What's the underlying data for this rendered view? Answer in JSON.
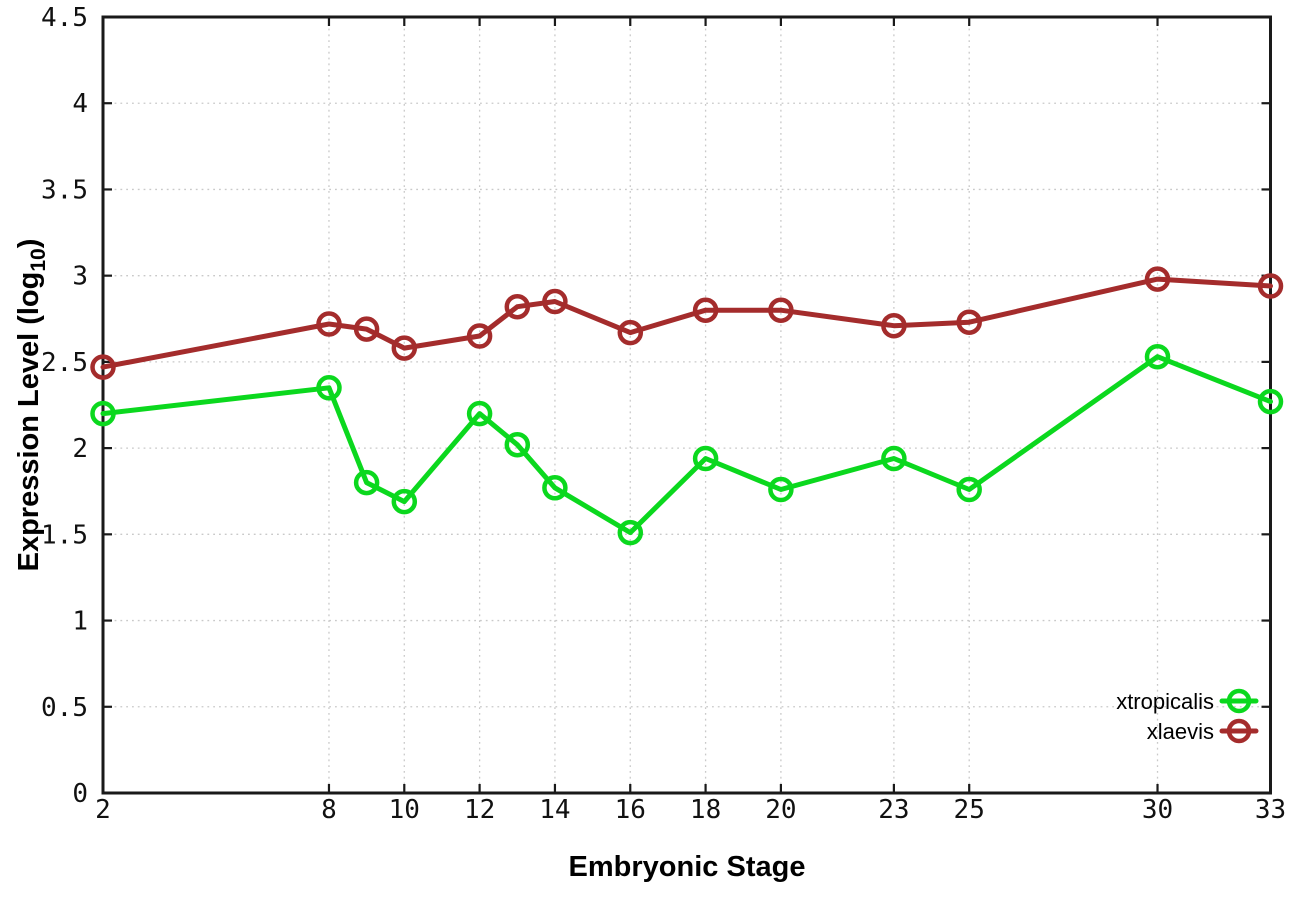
{
  "chart_data": {
    "type": "line",
    "title": "",
    "xlabel": "Embryonic Stage",
    "ylabel": "Expression Level (log10)",
    "ylabel_parts": {
      "pre": "Expression Level (log",
      "sub": "10",
      "post": ")"
    },
    "x": [
      2,
      8,
      9,
      10,
      12,
      13,
      14,
      16,
      18,
      20,
      23,
      25,
      30,
      33
    ],
    "series": [
      {
        "name": "xtropicalis",
        "color": "#0bd81e",
        "values": [
          2.2,
          2.35,
          1.8,
          1.69,
          2.2,
          2.02,
          1.77,
          1.51,
          1.94,
          1.76,
          1.94,
          1.76,
          2.53,
          2.27
        ]
      },
      {
        "name": "xlaevis",
        "color": "#a42c2c",
        "values": [
          2.47,
          2.72,
          2.69,
          2.58,
          2.65,
          2.82,
          2.85,
          2.67,
          2.8,
          2.8,
          2.71,
          2.73,
          2.98,
          2.94
        ]
      }
    ],
    "xlim": [
      2,
      33
    ],
    "ylim": [
      0,
      4.5
    ],
    "x_ticks": [
      2,
      8,
      10,
      12,
      14,
      16,
      18,
      20,
      23,
      25,
      30,
      33
    ],
    "y_ticks": [
      0,
      0.5,
      1,
      1.5,
      2,
      2.5,
      3,
      3.5,
      4,
      4.5
    ],
    "grid": true,
    "grid_color": "#c9c9c9",
    "axis_color": "#1a1a1a",
    "marker": "open-circle",
    "legend_position": "inside-bottom-right",
    "legend": [
      "xtropicalis",
      "xlaevis"
    ]
  }
}
